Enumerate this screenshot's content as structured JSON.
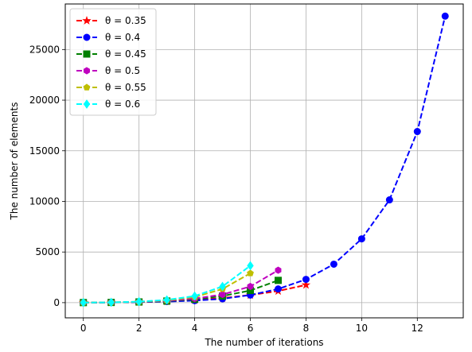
{
  "chart_data": {
    "type": "line",
    "title": "",
    "xlabel": "The number of iterations",
    "ylabel": "The number of elements",
    "xlim": [
      -0.65,
      13.65
    ],
    "ylim": [
      -1500,
      29500
    ],
    "xticks": [
      0,
      2,
      4,
      6,
      8,
      10,
      12
    ],
    "yticks": [
      0,
      5000,
      10000,
      15000,
      20000,
      25000
    ],
    "grid": true,
    "legend_position": "upper left",
    "line_style": "dashed",
    "series": [
      {
        "name": "θ = 0.35",
        "color": "#ff0000",
        "marker": "star",
        "x": [
          0,
          1,
          2,
          3,
          4,
          5,
          6,
          7,
          8
        ],
        "y": [
          8,
          20,
          60,
          130,
          260,
          450,
          750,
          1150,
          1750
        ]
      },
      {
        "name": "θ = 0.4",
        "color": "#0000ff",
        "marker": "circle",
        "x": [
          0,
          1,
          2,
          3,
          4,
          5,
          6,
          7,
          8,
          9,
          10,
          11,
          12,
          13
        ],
        "y": [
          8,
          20,
          55,
          110,
          200,
          380,
          750,
          1350,
          2300,
          3800,
          6300,
          10150,
          16900,
          28300
        ]
      },
      {
        "name": "θ = 0.45",
        "color": "#008000",
        "marker": "square",
        "x": [
          0,
          1,
          2,
          3,
          4,
          5,
          6,
          7
        ],
        "y": [
          8,
          22,
          70,
          160,
          330,
          650,
          1200,
          2200
        ]
      },
      {
        "name": "θ = 0.5",
        "color": "#bf00bf",
        "marker": "hexagon",
        "x": [
          0,
          1,
          2,
          3,
          4,
          5,
          6,
          7
        ],
        "y": [
          8,
          24,
          80,
          190,
          400,
          800,
          1600,
          3200
        ]
      },
      {
        "name": "θ = 0.55",
        "color": "#bfbf00",
        "marker": "pentagon",
        "x": [
          0,
          1,
          2,
          3,
          4,
          5,
          6
        ],
        "y": [
          8,
          26,
          90,
          230,
          550,
          1350,
          2900
        ]
      },
      {
        "name": "θ = 0.6",
        "color": "#00ffff",
        "marker": "diamond",
        "x": [
          0,
          1,
          2,
          3,
          4,
          5,
          6
        ],
        "y": [
          8,
          28,
          100,
          270,
          650,
          1600,
          3650
        ]
      }
    ]
  }
}
